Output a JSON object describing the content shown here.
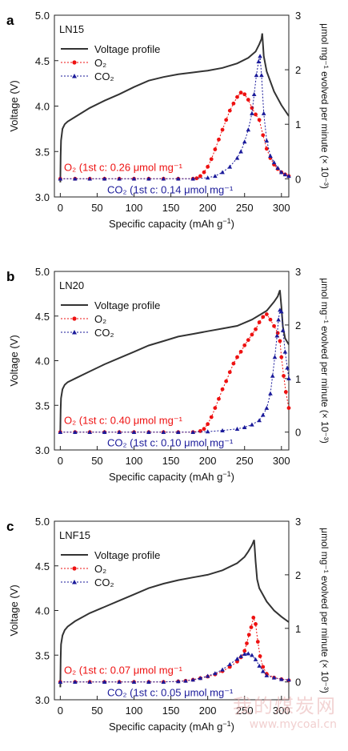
{
  "colors": {
    "voltage": "#333333",
    "o2": "#ee1111",
    "co2": "#1a1a9a",
    "axis": "#222222"
  },
  "watermark": {
    "text": "我的煤炭网",
    "url": "www.mycoal.cn"
  },
  "legend_labels": {
    "voltage": "Voltage profile"
  },
  "axes_text": {
    "xlabel": "Specific capacity (mAh g",
    "xlabel_sup": "−1",
    "xlabel_end": ")",
    "ylabel_left": "Voltage (V)",
    "ylabel_right": "μmol mg⁻¹ evolved per minute (× 10⁻³)"
  },
  "chart_data": [
    {
      "type": "line",
      "panel_letter": "a",
      "sample": "LN15",
      "xlim": [
        -8,
        310
      ],
      "ylim_left": [
        3.0,
        5.0
      ],
      "ylim_right": [
        -0.333,
        3.0
      ],
      "xticks": [
        0,
        50,
        100,
        150,
        200,
        250,
        300
      ],
      "yticks_left": [
        "3.0",
        "3.5",
        "4.0",
        "4.5",
        "5.0"
      ],
      "yticks_right": [
        "0",
        "1",
        "2",
        "3"
      ],
      "series": [
        {
          "name": "Voltage profile",
          "axis": "left",
          "marker": "none",
          "x": [
            0,
            0.5,
            1,
            3,
            6,
            10,
            20,
            40,
            60,
            80,
            100,
            120,
            140,
            160,
            180,
            200,
            220,
            240,
            255,
            265,
            270,
            273,
            274,
            276,
            280,
            290,
            300,
            310
          ],
          "y": [
            3.16,
            3.45,
            3.62,
            3.75,
            3.8,
            3.83,
            3.88,
            3.98,
            4.06,
            4.13,
            4.21,
            4.28,
            4.32,
            4.35,
            4.37,
            4.39,
            4.42,
            4.47,
            4.53,
            4.6,
            4.68,
            4.74,
            4.8,
            4.55,
            4.38,
            4.16,
            4.01,
            3.89
          ]
        },
        {
          "name": "O₂",
          "axis": "right",
          "marker": "circle",
          "label": "O₂ (1st c: 0.26 μmol mg⁻¹",
          "x": [
            0,
            20,
            40,
            60,
            80,
            100,
            120,
            140,
            160,
            180,
            185,
            190,
            195,
            200,
            205,
            210,
            215,
            220,
            225,
            230,
            235,
            240,
            245,
            250,
            255,
            260,
            265,
            270,
            275,
            280,
            285,
            290,
            295,
            300,
            305,
            310
          ],
          "y": [
            0,
            0,
            0,
            0,
            0,
            0,
            0,
            0,
            0,
            0,
            0.01,
            0.05,
            0.12,
            0.22,
            0.36,
            0.54,
            0.72,
            0.9,
            1.08,
            1.25,
            1.38,
            1.5,
            1.58,
            1.55,
            1.45,
            1.3,
            1.18,
            1.08,
            0.8,
            0.55,
            0.38,
            0.26,
            0.18,
            0.12,
            0.08,
            0.05
          ]
        },
        {
          "name": "CO₂",
          "axis": "right",
          "marker": "triangle",
          "label": "CO₂ (1st c: 0.14 μmol mg⁻¹",
          "x": [
            0,
            20,
            40,
            60,
            80,
            100,
            120,
            140,
            160,
            180,
            200,
            210,
            220,
            230,
            240,
            245,
            250,
            255,
            260,
            263,
            266,
            269,
            271,
            273,
            276,
            280,
            285,
            290,
            295,
            300,
            305,
            310
          ],
          "y": [
            0,
            0,
            0,
            0,
            0,
            0,
            0,
            0,
            0,
            0,
            0.02,
            0.05,
            0.12,
            0.22,
            0.38,
            0.5,
            0.68,
            0.9,
            1.2,
            1.55,
            1.9,
            2.15,
            2.25,
            1.9,
            1.2,
            0.7,
            0.42,
            0.3,
            0.2,
            0.12,
            0.08,
            0.05
          ]
        }
      ]
    },
    {
      "type": "line",
      "panel_letter": "b",
      "sample": "LN20",
      "xlim": [
        -8,
        310
      ],
      "ylim_left": [
        3.0,
        5.0
      ],
      "ylim_right": [
        -0.333,
        3.0
      ],
      "xticks": [
        0,
        50,
        100,
        150,
        200,
        250,
        300
      ],
      "yticks_left": [
        "3.0",
        "3.5",
        "4.0",
        "4.5",
        "5.0"
      ],
      "yticks_right": [
        "0",
        "1",
        "2",
        "3"
      ],
      "series": [
        {
          "name": "Voltage profile",
          "axis": "left",
          "marker": "none",
          "x": [
            0,
            0.5,
            1,
            3,
            6,
            10,
            20,
            40,
            60,
            80,
            100,
            120,
            140,
            160,
            180,
            200,
            220,
            240,
            260,
            280,
            290,
            295,
            298,
            300,
            302,
            305,
            310
          ],
          "y": [
            3.22,
            3.45,
            3.58,
            3.68,
            3.73,
            3.76,
            3.8,
            3.88,
            3.96,
            4.03,
            4.1,
            4.17,
            4.22,
            4.27,
            4.3,
            4.33,
            4.36,
            4.39,
            4.46,
            4.56,
            4.66,
            4.72,
            4.79,
            4.6,
            4.38,
            4.25,
            4.18
          ]
        },
        {
          "name": "O₂",
          "axis": "right",
          "marker": "circle",
          "label": "O₂ (1st c: 0.40 μmol mg⁻¹",
          "x": [
            0,
            20,
            40,
            60,
            80,
            100,
            120,
            140,
            160,
            180,
            190,
            195,
            200,
            205,
            210,
            215,
            220,
            225,
            230,
            235,
            240,
            245,
            250,
            255,
            260,
            265,
            270,
            275,
            280,
            285,
            290,
            295,
            298,
            300,
            303,
            306,
            310
          ],
          "y": [
            0,
            0,
            0,
            0,
            0,
            0,
            0,
            0,
            0,
            0,
            0.02,
            0.06,
            0.15,
            0.28,
            0.45,
            0.62,
            0.8,
            0.95,
            1.12,
            1.28,
            1.4,
            1.5,
            1.62,
            1.72,
            1.82,
            1.92,
            2.05,
            2.15,
            2.2,
            2.1,
            1.98,
            1.85,
            1.7,
            1.4,
            1.05,
            0.75,
            0.45
          ]
        },
        {
          "name": "CO₂",
          "axis": "right",
          "marker": "triangle",
          "label": "CO₂ (1st c: 0.10 μmol mg⁻¹",
          "x": [
            0,
            20,
            40,
            60,
            80,
            100,
            120,
            140,
            160,
            180,
            200,
            220,
            240,
            250,
            260,
            270,
            275,
            280,
            285,
            288,
            291,
            294,
            296,
            298,
            300,
            302,
            305,
            308,
            310
          ],
          "y": [
            0,
            0,
            0,
            0,
            0,
            0,
            0,
            0,
            0,
            0,
            0.01,
            0.03,
            0.06,
            0.09,
            0.14,
            0.22,
            0.32,
            0.45,
            0.72,
            1.05,
            1.4,
            1.8,
            2.1,
            2.28,
            2.25,
            1.9,
            1.5,
            1.2,
            1.0
          ]
        }
      ]
    },
    {
      "type": "line",
      "panel_letter": "c",
      "sample": "LNF15",
      "xlim": [
        -8,
        310
      ],
      "ylim_left": [
        3.0,
        5.0
      ],
      "ylim_right": [
        -0.333,
        3.0
      ],
      "xticks": [
        0,
        50,
        100,
        150,
        200,
        250,
        300
      ],
      "yticks_left": [
        "3.0",
        "3.5",
        "4.0",
        "4.5",
        "5.0"
      ],
      "yticks_right": [
        "0",
        "1",
        "2",
        "3"
      ],
      "series": [
        {
          "name": "Voltage profile",
          "axis": "left",
          "marker": "none",
          "x": [
            0,
            0.5,
            1,
            3,
            6,
            10,
            20,
            40,
            60,
            80,
            100,
            120,
            140,
            160,
            180,
            200,
            220,
            240,
            250,
            255,
            260,
            263,
            265,
            267,
            270,
            280,
            290,
            300,
            310
          ],
          "y": [
            3.14,
            3.45,
            3.62,
            3.72,
            3.78,
            3.82,
            3.88,
            3.97,
            4.04,
            4.11,
            4.18,
            4.25,
            4.3,
            4.34,
            4.37,
            4.4,
            4.45,
            4.53,
            4.6,
            4.66,
            4.73,
            4.79,
            4.55,
            4.35,
            4.25,
            4.1,
            4.0,
            3.93,
            3.87
          ]
        },
        {
          "name": "O₂",
          "axis": "right",
          "marker": "circle",
          "label": "O₂ (1st c: 0.07 μmol mg⁻¹",
          "x": [
            0,
            20,
            40,
            60,
            80,
            100,
            120,
            140,
            160,
            170,
            180,
            190,
            200,
            210,
            220,
            230,
            240,
            245,
            250,
            253,
            256,
            259,
            262,
            265,
            268,
            271,
            275,
            280,
            290,
            300,
            310
          ],
          "y": [
            0,
            0,
            0,
            0,
            0,
            0,
            0,
            0,
            0.01,
            0.02,
            0.04,
            0.07,
            0.1,
            0.14,
            0.2,
            0.28,
            0.38,
            0.46,
            0.58,
            0.72,
            0.88,
            1.02,
            1.2,
            1.08,
            0.75,
            0.48,
            0.28,
            0.15,
            0.08,
            0.05,
            0.03
          ]
        },
        {
          "name": "CO₂",
          "axis": "right",
          "marker": "triangle",
          "label": "CO₂ (1st c: 0.05 μmol mg⁻¹",
          "x": [
            0,
            20,
            40,
            60,
            80,
            100,
            120,
            140,
            160,
            170,
            180,
            190,
            200,
            210,
            220,
            230,
            240,
            245,
            250,
            255,
            260,
            265,
            270,
            275,
            280,
            290,
            300,
            310
          ],
          "y": [
            0,
            0,
            0,
            0,
            0,
            0,
            0,
            0,
            0.01,
            0.02,
            0.04,
            0.07,
            0.11,
            0.16,
            0.23,
            0.33,
            0.43,
            0.48,
            0.52,
            0.53,
            0.5,
            0.42,
            0.3,
            0.2,
            0.12,
            0.08,
            0.05,
            0.04
          ]
        }
      ]
    }
  ]
}
